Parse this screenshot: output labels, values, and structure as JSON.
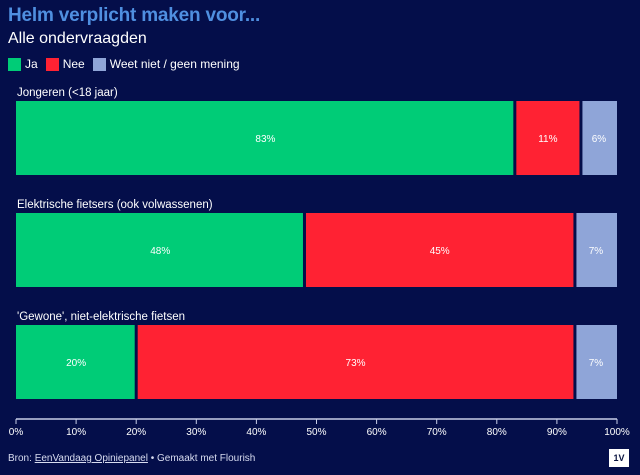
{
  "chart_data": {
    "type": "bar",
    "orientation": "horizontal",
    "stacked": true,
    "title": "Helm verplicht maken voor...",
    "subtitle": "Alle ondervraagden",
    "categories": [
      "Jongeren (<18 jaar)",
      "Elektrische fietsers (ook volwassenen)",
      "'Gewone', niet-elektrische fietsen"
    ],
    "series": [
      {
        "name": "Ja",
        "color": "#00cc77",
        "values": [
          83,
          48,
          20
        ]
      },
      {
        "name": "Nee",
        "color": "#ff2233",
        "values": [
          11,
          45,
          73
        ]
      },
      {
        "name": "Weet niet / geen mening",
        "color": "#8fa5d8",
        "values": [
          6,
          7,
          7
        ]
      }
    ],
    "xlim": [
      0,
      100
    ],
    "xticks": [
      "0%",
      "10%",
      "20%",
      "30%",
      "40%",
      "50%",
      "60%",
      "70%",
      "80%",
      "90%",
      "100%"
    ],
    "value_suffix": "%",
    "legend": "top-left",
    "grid": false
  },
  "footer": {
    "source_prefix": "Bron: ",
    "source_link": "EenVandaag Opiniepanel",
    "made_with": " • Gemaakt met Flourish"
  },
  "logo_text": "1V"
}
